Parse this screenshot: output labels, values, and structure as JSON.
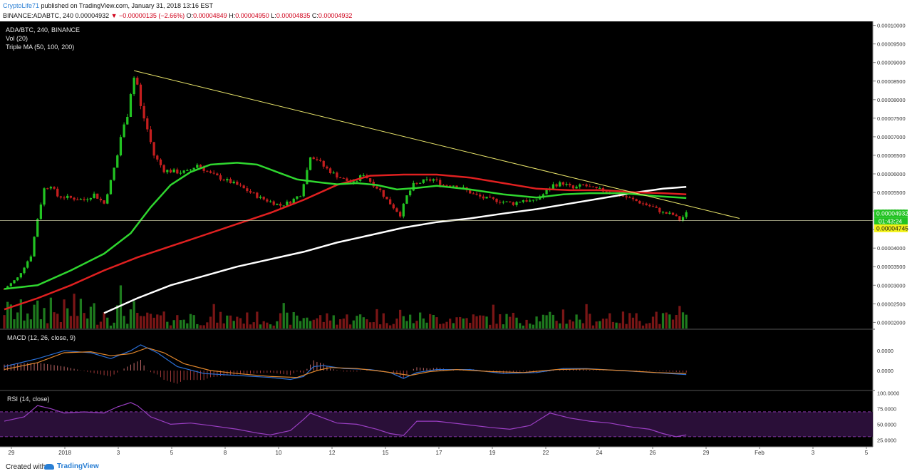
{
  "header": {
    "author": "CryptoLife71",
    "published": "published on TradingView.com, January 31, 2018 13:16 EST",
    "symbol": "BINANCE:ADABTC, 240",
    "last": "0.00004932",
    "change": "▼ −0.00000135 (−2.66%)",
    "o_label": "O:",
    "o_value": "0.00004849",
    "h_label": "H:",
    "h_value": "0.00004950",
    "l_label": "L:",
    "l_value": "0.00004835",
    "c_label": "C:",
    "c_value": "0.00004932"
  },
  "legend": {
    "pair": "ADA/BTC, 240, BINANCE",
    "vol": "Vol (20)",
    "ma": "Triple MA (50, 100, 200)",
    "macd": "MACD (12, 26, close, 9)",
    "rsi": "RSI (14, close)"
  },
  "footer": {
    "created": "Created with",
    "brand": "TradingView"
  },
  "colors": {
    "background": "#000000",
    "up": "#22c322",
    "down": "#c41e1e",
    "ma50": "#2fd62f",
    "ma100": "#e02020",
    "ma200": "#ffffff",
    "trendline": "#e8e46a",
    "macd": "#2a6fd6",
    "signal": "#e0862c",
    "rsi": "#9b3fc4",
    "rsi_band": "#2a0f38"
  },
  "chart_data": {
    "type": "candlestick",
    "x_ticks": [
      "29",
      "2018",
      "3",
      "5",
      "8",
      "10",
      "12",
      "15",
      "17",
      "19",
      "22",
      "24",
      "26",
      "29",
      "Feb",
      "3",
      "5"
    ],
    "y_ticks": [
      "0.00010000",
      "0.00009500",
      "0.00009000",
      "0.00008500",
      "0.00008000",
      "0.00007500",
      "0.00007000",
      "0.00006500",
      "0.00006000",
      "0.00005500",
      "0.00005000",
      "0.00004500",
      "0.00004000",
      "0.00003500",
      "0.00003000",
      "0.00002500",
      "0.00002000"
    ],
    "ylim": [
      1.95e-05,
      0.0001005
    ],
    "price_tag": "0.00004932",
    "countdown_tag": "01:43:24",
    "line_tag": "0.00004745",
    "horizontal_line": 4.745e-05,
    "close_path": [
      [
        0,
        2.9e-05
      ],
      [
        4,
        3.2e-05
      ],
      [
        8,
        3.8e-05
      ],
      [
        10,
        4.8e-05
      ],
      [
        12,
        5.6e-05
      ],
      [
        14,
        5.7e-05
      ],
      [
        16,
        5.4e-05
      ],
      [
        20,
        5.35e-05
      ],
      [
        24,
        5.3e-05
      ],
      [
        27,
        5.45e-05
      ],
      [
        30,
        5.2e-05
      ],
      [
        32,
        5.8e-05
      ],
      [
        34,
        6.5e-05
      ],
      [
        35,
        7e-05
      ],
      [
        37,
        7.6e-05
      ],
      [
        38,
        8.2e-05
      ],
      [
        39,
        8.6e-05
      ],
      [
        40,
        8.4e-05
      ],
      [
        41,
        7.8e-05
      ],
      [
        43,
        7.2e-05
      ],
      [
        45,
        6.5e-05
      ],
      [
        48,
        6.1e-05
      ],
      [
        52,
        6.05e-05
      ],
      [
        55,
        6.05e-05
      ],
      [
        58,
        6.25e-05
      ],
      [
        62,
        6e-05
      ],
      [
        66,
        5.85e-05
      ],
      [
        70,
        5.7e-05
      ],
      [
        74,
        5.5e-05
      ],
      [
        77,
        5.35e-05
      ],
      [
        80,
        5.25e-05
      ],
      [
        83,
        5.15e-05
      ],
      [
        86,
        5.25e-05
      ],
      [
        89,
        5.45e-05
      ],
      [
        91,
        6.1e-05
      ],
      [
        92,
        6.5e-05
      ],
      [
        94,
        6.4e-05
      ],
      [
        96,
        6.2e-05
      ],
      [
        99,
        6e-05
      ],
      [
        102,
        5.85e-05
      ],
      [
        105,
        5.75e-05
      ],
      [
        108,
        6e-05
      ],
      [
        110,
        5.8e-05
      ],
      [
        113,
        5.55e-05
      ],
      [
        115,
        5.3e-05
      ],
      [
        117,
        5.1e-05
      ],
      [
        119,
        4.9e-05
      ],
      [
        121,
        5.4e-05
      ],
      [
        123,
        5.7e-05
      ],
      [
        126,
        5.8e-05
      ],
      [
        129,
        5.85e-05
      ],
      [
        132,
        5.7e-05
      ],
      [
        135,
        5.7e-05
      ],
      [
        138,
        5.6e-05
      ],
      [
        141,
        5.45e-05
      ],
      [
        144,
        5.35e-05
      ],
      [
        147,
        5.3e-05
      ],
      [
        150,
        5.25e-05
      ],
      [
        153,
        5.2e-05
      ],
      [
        156,
        5.3e-05
      ],
      [
        159,
        5.25e-05
      ],
      [
        162,
        5.45e-05
      ],
      [
        165,
        5.7e-05
      ],
      [
        168,
        5.75e-05
      ],
      [
        171,
        5.6e-05
      ],
      [
        174,
        5.7e-05
      ],
      [
        177,
        5.6e-05
      ],
      [
        180,
        5.55e-05
      ],
      [
        183,
        5.5e-05
      ],
      [
        186,
        5.4e-05
      ],
      [
        189,
        5.3e-05
      ],
      [
        192,
        5.2e-05
      ],
      [
        195,
        5.1e-05
      ],
      [
        198,
        4.95e-05
      ],
      [
        201,
        4.9e-05
      ],
      [
        203,
        4.75e-05
      ],
      [
        205,
        4.93e-05
      ]
    ],
    "ma50_path": [
      [
        0,
        2.9e-05
      ],
      [
        10,
        3e-05
      ],
      [
        20,
        3.4e-05
      ],
      [
        30,
        3.85e-05
      ],
      [
        38,
        4.4e-05
      ],
      [
        44,
        5.1e-05
      ],
      [
        50,
        5.7e-05
      ],
      [
        56,
        6.05e-05
      ],
      [
        62,
        6.25e-05
      ],
      [
        70,
        6.3e-05
      ],
      [
        76,
        6.25e-05
      ],
      [
        82,
        6.05e-05
      ],
      [
        88,
        5.85e-05
      ],
      [
        94,
        5.78e-05
      ],
      [
        100,
        5.72e-05
      ],
      [
        106,
        5.75e-05
      ],
      [
        112,
        5.7e-05
      ],
      [
        118,
        5.58e-05
      ],
      [
        124,
        5.62e-05
      ],
      [
        130,
        5.68e-05
      ],
      [
        140,
        5.58e-05
      ],
      [
        150,
        5.45e-05
      ],
      [
        160,
        5.36e-05
      ],
      [
        168,
        5.45e-05
      ],
      [
        176,
        5.48e-05
      ],
      [
        186,
        5.48e-05
      ],
      [
        196,
        5.4e-05
      ],
      [
        205,
        5.35e-05
      ]
    ],
    "ma100_path": [
      [
        0,
        2.35e-05
      ],
      [
        10,
        2.65e-05
      ],
      [
        20,
        3e-05
      ],
      [
        30,
        3.4e-05
      ],
      [
        40,
        3.75e-05
      ],
      [
        50,
        4.05e-05
      ],
      [
        60,
        4.35e-05
      ],
      [
        70,
        4.65e-05
      ],
      [
        80,
        4.95e-05
      ],
      [
        90,
        5.3e-05
      ],
      [
        100,
        5.7e-05
      ],
      [
        110,
        5.95e-05
      ],
      [
        120,
        5.98e-05
      ],
      [
        130,
        5.98e-05
      ],
      [
        140,
        5.9e-05
      ],
      [
        150,
        5.75e-05
      ],
      [
        160,
        5.6e-05
      ],
      [
        170,
        5.56e-05
      ],
      [
        180,
        5.56e-05
      ],
      [
        190,
        5.5e-05
      ],
      [
        198,
        5.48e-05
      ],
      [
        205,
        5.45e-05
      ]
    ],
    "ma200_path": [
      [
        30,
        2.25e-05
      ],
      [
        40,
        2.65e-05
      ],
      [
        50,
        3e-05
      ],
      [
        60,
        3.25e-05
      ],
      [
        70,
        3.5e-05
      ],
      [
        80,
        3.7e-05
      ],
      [
        90,
        3.9e-05
      ],
      [
        100,
        4.15e-05
      ],
      [
        110,
        4.35e-05
      ],
      [
        120,
        4.55e-05
      ],
      [
        130,
        4.7e-05
      ],
      [
        140,
        4.8e-05
      ],
      [
        150,
        4.93e-05
      ],
      [
        160,
        5.05e-05
      ],
      [
        170,
        5.2e-05
      ],
      [
        180,
        5.35e-05
      ],
      [
        190,
        5.5e-05
      ],
      [
        198,
        5.6e-05
      ],
      [
        205,
        5.65e-05
      ]
    ],
    "trendline": [
      [
        39,
        8.78e-05
      ],
      [
        221,
        4.8e-05
      ]
    ],
    "macd": {
      "y_ticks": [
        "0.0000",
        "0.0000"
      ],
      "macd_path": [
        [
          0,
          0.2
        ],
        [
          10,
          0.6
        ],
        [
          18,
          1.0
        ],
        [
          26,
          0.9
        ],
        [
          32,
          0.6
        ],
        [
          38,
          1.0
        ],
        [
          41,
          1.3
        ],
        [
          46,
          0.9
        ],
        [
          52,
          0.2
        ],
        [
          60,
          -0.15
        ],
        [
          70,
          -0.25
        ],
        [
          80,
          -0.35
        ],
        [
          86,
          -0.45
        ],
        [
          90,
          -0.3
        ],
        [
          93,
          0.2
        ],
        [
          96,
          0.25
        ],
        [
          102,
          0.1
        ],
        [
          110,
          0.05
        ],
        [
          116,
          -0.1
        ],
        [
          120,
          -0.4
        ],
        [
          124,
          -0.1
        ],
        [
          130,
          0.05
        ],
        [
          140,
          0.05
        ],
        [
          150,
          -0.15
        ],
        [
          160,
          -0.1
        ],
        [
          168,
          0.1
        ],
        [
          175,
          0.1
        ],
        [
          185,
          0.0
        ],
        [
          195,
          -0.1
        ],
        [
          205,
          -0.2
        ]
      ],
      "signal_path": [
        [
          0,
          0.05
        ],
        [
          10,
          0.4
        ],
        [
          18,
          0.9
        ],
        [
          26,
          0.95
        ],
        [
          32,
          0.75
        ],
        [
          38,
          0.85
        ],
        [
          43,
          1.15
        ],
        [
          48,
          0.9
        ],
        [
          54,
          0.35
        ],
        [
          62,
          0.0
        ],
        [
          70,
          -0.15
        ],
        [
          80,
          -0.3
        ],
        [
          88,
          -0.35
        ],
        [
          94,
          0.0
        ],
        [
          98,
          0.15
        ],
        [
          106,
          0.1
        ],
        [
          114,
          -0.05
        ],
        [
          122,
          -0.25
        ],
        [
          128,
          -0.05
        ],
        [
          136,
          0.05
        ],
        [
          146,
          -0.05
        ],
        [
          156,
          -0.1
        ],
        [
          166,
          0.05
        ],
        [
          175,
          0.08
        ],
        [
          186,
          0.0
        ],
        [
          196,
          -0.1
        ],
        [
          205,
          -0.15
        ]
      ],
      "ylim": [
        -0.9,
        1.8
      ]
    },
    "rsi": {
      "y_ticks": [
        "100.0000",
        "75.0000",
        "50.0000",
        "25.0000"
      ],
      "ylim": [
        15,
        102
      ],
      "band": [
        30,
        70
      ],
      "path": [
        [
          0,
          55
        ],
        [
          6,
          62
        ],
        [
          10,
          80
        ],
        [
          14,
          75
        ],
        [
          18,
          68
        ],
        [
          24,
          70
        ],
        [
          30,
          68
        ],
        [
          34,
          78
        ],
        [
          38,
          85
        ],
        [
          40,
          80
        ],
        [
          44,
          62
        ],
        [
          50,
          50
        ],
        [
          56,
          52
        ],
        [
          62,
          48
        ],
        [
          70,
          42
        ],
        [
          76,
          36
        ],
        [
          80,
          33
        ],
        [
          86,
          40
        ],
        [
          90,
          58
        ],
        [
          92,
          68
        ],
        [
          96,
          60
        ],
        [
          100,
          52
        ],
        [
          106,
          50
        ],
        [
          112,
          42
        ],
        [
          116,
          35
        ],
        [
          120,
          32
        ],
        [
          124,
          55
        ],
        [
          130,
          55
        ],
        [
          138,
          50
        ],
        [
          146,
          45
        ],
        [
          152,
          42
        ],
        [
          158,
          48
        ],
        [
          164,
          68
        ],
        [
          170,
          60
        ],
        [
          176,
          55
        ],
        [
          182,
          52
        ],
        [
          188,
          46
        ],
        [
          194,
          42
        ],
        [
          198,
          35
        ],
        [
          202,
          30
        ],
        [
          205,
          33
        ]
      ]
    }
  }
}
